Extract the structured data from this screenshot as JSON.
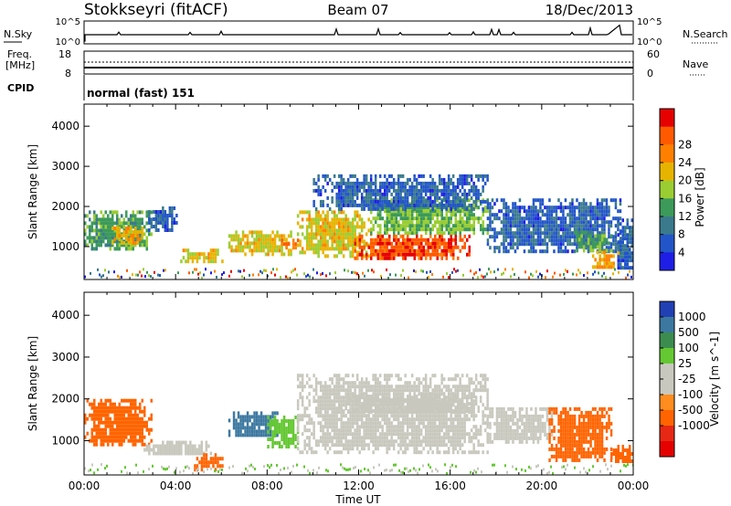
{
  "header": {
    "station": "Stokkseyri (fitACF)",
    "beam": "Beam 07",
    "date": "18/Dec/2013"
  },
  "top_panels": {
    "nsky_label": "N.Sky",
    "nsky_ticks": [
      "10^5",
      "10^0"
    ],
    "nsearch_label": "N.Search",
    "nsearch_ticks": [
      "10^5",
      "10^0"
    ],
    "freq_label": "Freq.",
    "freq_unit": "[MHz]",
    "freq_ticks": [
      "18",
      "8"
    ],
    "nave_label": "Nave",
    "nave_ticks": [
      "60",
      "0"
    ],
    "cpid_label": "CPID",
    "cpid_value": "normal (fast) 151"
  },
  "colors": {
    "power_scale": [
      "#1e1ee6",
      "#2255c8",
      "#3a7a8c",
      "#3c9a5a",
      "#9acd32",
      "#e6b400",
      "#ff8000",
      "#ff5a00",
      "#e60000"
    ],
    "velocity_scale": [
      "#2040b4",
      "#3c78a0",
      "#3c8c50",
      "#64c832",
      "#c8c8be",
      "#c8c8be",
      "#ff8c1e",
      "#ff6400",
      "#e62814",
      "#e60000"
    ]
  },
  "chart_data": [
    {
      "type": "heatmap",
      "name": "power",
      "ylabel": "Slant Range [km]",
      "xlabel": "",
      "ylim": [
        180,
        4550
      ],
      "xlim_hours": [
        0,
        24
      ],
      "y_ticks": [
        "1000",
        "2000",
        "3000",
        "4000"
      ],
      "colorbar_label": "Power [dB]",
      "colorbar_ticks": [
        "4",
        "8",
        "12",
        "16",
        "20",
        "24",
        "28"
      ],
      "regions": [
        {
          "t0": 0.0,
          "t1": 2.9,
          "r0": 900,
          "r1": 1900,
          "v": 12
        },
        {
          "t0": 1.2,
          "t1": 2.5,
          "r0": 1100,
          "r1": 1500,
          "v": 20
        },
        {
          "t0": 2.8,
          "t1": 4.0,
          "r0": 1400,
          "r1": 2000,
          "v": 6
        },
        {
          "t0": 4.2,
          "t1": 6.0,
          "r0": 650,
          "r1": 950,
          "v": 18
        },
        {
          "t0": 6.3,
          "t1": 9.0,
          "r0": 800,
          "r1": 1400,
          "v": 18
        },
        {
          "t0": 8.6,
          "t1": 9.3,
          "r0": 1000,
          "r1": 1200,
          "v": 24
        },
        {
          "t0": 9.3,
          "t1": 12.5,
          "r0": 800,
          "r1": 1900,
          "v": 18
        },
        {
          "t0": 11.8,
          "t1": 16.8,
          "r0": 700,
          "r1": 1300,
          "v": 26
        },
        {
          "t0": 12.5,
          "t1": 17.6,
          "r0": 1300,
          "r1": 2200,
          "v": 14
        },
        {
          "t0": 10.0,
          "t1": 17.6,
          "r0": 1900,
          "r1": 2800,
          "v": 6
        },
        {
          "t0": 17.6,
          "t1": 23.4,
          "r0": 900,
          "r1": 2200,
          "v": 6
        },
        {
          "t0": 21.3,
          "t1": 23.0,
          "r0": 900,
          "r1": 1400,
          "v": 12
        },
        {
          "t0": 22.2,
          "t1": 23.3,
          "r0": 450,
          "r1": 900,
          "v": 20
        },
        {
          "t0": 23.3,
          "t1": 24.0,
          "r0": 500,
          "r1": 1700,
          "v": 6
        }
      ]
    },
    {
      "type": "heatmap",
      "name": "velocity",
      "ylabel": "Slant Range [km]",
      "xlabel": "Time UT",
      "ylim": [
        180,
        4550
      ],
      "xlim_hours": [
        0,
        24
      ],
      "y_ticks": [
        "1000",
        "2000",
        "3000",
        "4000"
      ],
      "x_ticks": [
        "00:00",
        "04:00",
        "08:00",
        "12:00",
        "16:00",
        "20:00",
        "00:00"
      ],
      "colorbar_label": "Velocity [m s^-1]",
      "colorbar_ticks": [
        "1000",
        "500",
        "100",
        "25",
        "-25",
        "-100",
        "-500",
        "-1000"
      ],
      "regions": [
        {
          "t0": 0.0,
          "t1": 2.9,
          "r0": 900,
          "r1": 2000,
          "v": -300
        },
        {
          "t0": 2.6,
          "t1": 5.5,
          "r0": 700,
          "r1": 1000,
          "v": 0
        },
        {
          "t0": 4.8,
          "t1": 6.0,
          "r0": 350,
          "r1": 700,
          "v": -300
        },
        {
          "t0": 6.3,
          "t1": 8.4,
          "r0": 1100,
          "r1": 1700,
          "v": 150
        },
        {
          "t0": 8.0,
          "t1": 9.3,
          "r0": 900,
          "r1": 1600,
          "v": 60
        },
        {
          "t0": 9.3,
          "t1": 17.6,
          "r0": 700,
          "r1": 2600,
          "v": 0
        },
        {
          "t0": 11.0,
          "t1": 17.2,
          "r0": 1700,
          "r1": 2100,
          "v": 0
        },
        {
          "t0": 17.6,
          "t1": 20.4,
          "r0": 1000,
          "r1": 1800,
          "v": 0
        },
        {
          "t0": 20.3,
          "t1": 23.0,
          "r0": 500,
          "r1": 1800,
          "v": -300
        },
        {
          "t0": 23.0,
          "t1": 24.0,
          "r0": 550,
          "r1": 900,
          "v": -300
        }
      ]
    }
  ]
}
